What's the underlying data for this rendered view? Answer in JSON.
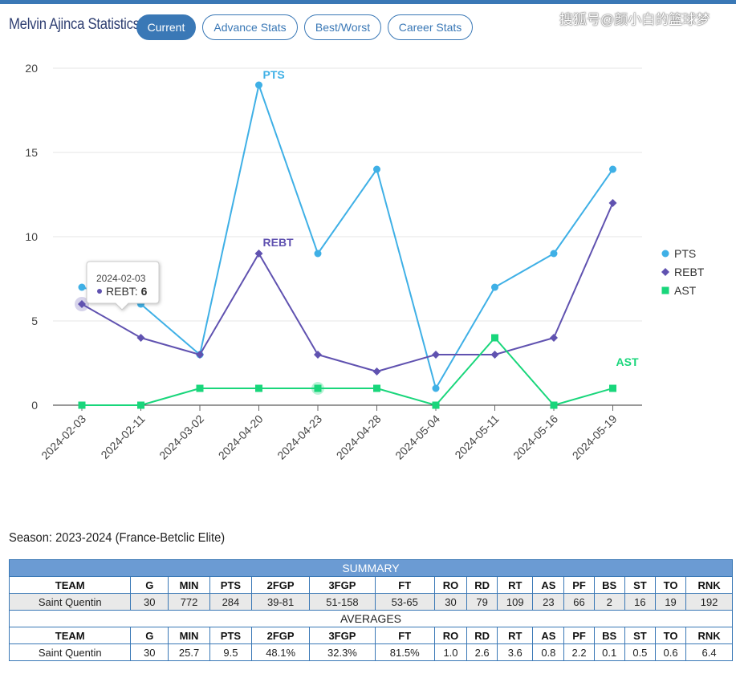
{
  "header": {
    "title": "Melvin Ajinca Statistics",
    "tabs": [
      "Current",
      "Advance Stats",
      "Best/Worst",
      "Career Stats"
    ],
    "active_tab": "Current",
    "watermark": "搜狐号@颜小白的篮球梦"
  },
  "colors": {
    "pts": "#3fb0e6",
    "rebt": "#6052b0",
    "ast": "#19d67b",
    "accent": "#3a78b6"
  },
  "chart_data": {
    "type": "line",
    "categories": [
      "2024-02-03",
      "2024-02-11",
      "2024-03-02",
      "2024-04-20",
      "2024-04-23",
      "2024-04-28",
      "2024-05-04",
      "2024-05-11",
      "2024-05-16",
      "2024-05-19"
    ],
    "series": [
      {
        "name": "PTS",
        "values": [
          7,
          6,
          3,
          19,
          9,
          14,
          1,
          7,
          9,
          14
        ]
      },
      {
        "name": "REBT",
        "values": [
          6,
          4,
          3,
          9,
          3,
          2,
          3,
          3,
          4,
          12
        ]
      },
      {
        "name": "AST",
        "values": [
          0,
          0,
          1,
          1,
          1,
          1,
          0,
          4,
          0,
          1
        ]
      }
    ],
    "yticks": [
      0,
      5,
      10,
      15,
      20
    ],
    "ylim": [
      0,
      20
    ],
    "legend_position": "right",
    "series_labels": [
      "PTS",
      "REBT",
      "AST"
    ],
    "tooltip": {
      "date": "2024-02-03",
      "series": "REBT",
      "label": "REBT: ",
      "value": "6"
    }
  },
  "season_label": "Season: 2023-2024 (France-Betclic Elite)",
  "summary": {
    "title": "SUMMARY",
    "columns": [
      "TEAM",
      "G",
      "MIN",
      "PTS",
      "2FGP",
      "3FGP",
      "FT",
      "RO",
      "RD",
      "RT",
      "AS",
      "PF",
      "BS",
      "ST",
      "TO",
      "RNK"
    ],
    "row": [
      "Saint Quentin",
      "30",
      "772",
      "284",
      "39-81",
      "51-158",
      "53-65",
      "30",
      "79",
      "109",
      "23",
      "66",
      "2",
      "16",
      "19",
      "192"
    ]
  },
  "averages": {
    "title": "AVERAGES",
    "columns": [
      "TEAM",
      "G",
      "MIN",
      "PTS",
      "2FGP",
      "3FGP",
      "FT",
      "RO",
      "RD",
      "RT",
      "AS",
      "PF",
      "BS",
      "ST",
      "TO",
      "RNK"
    ],
    "row": [
      "Saint Quentin",
      "30",
      "25.7",
      "9.5",
      "48.1%",
      "32.3%",
      "81.5%",
      "1.0",
      "2.6",
      "3.6",
      "0.8",
      "2.2",
      "0.1",
      "0.5",
      "0.6",
      "6.4"
    ]
  }
}
